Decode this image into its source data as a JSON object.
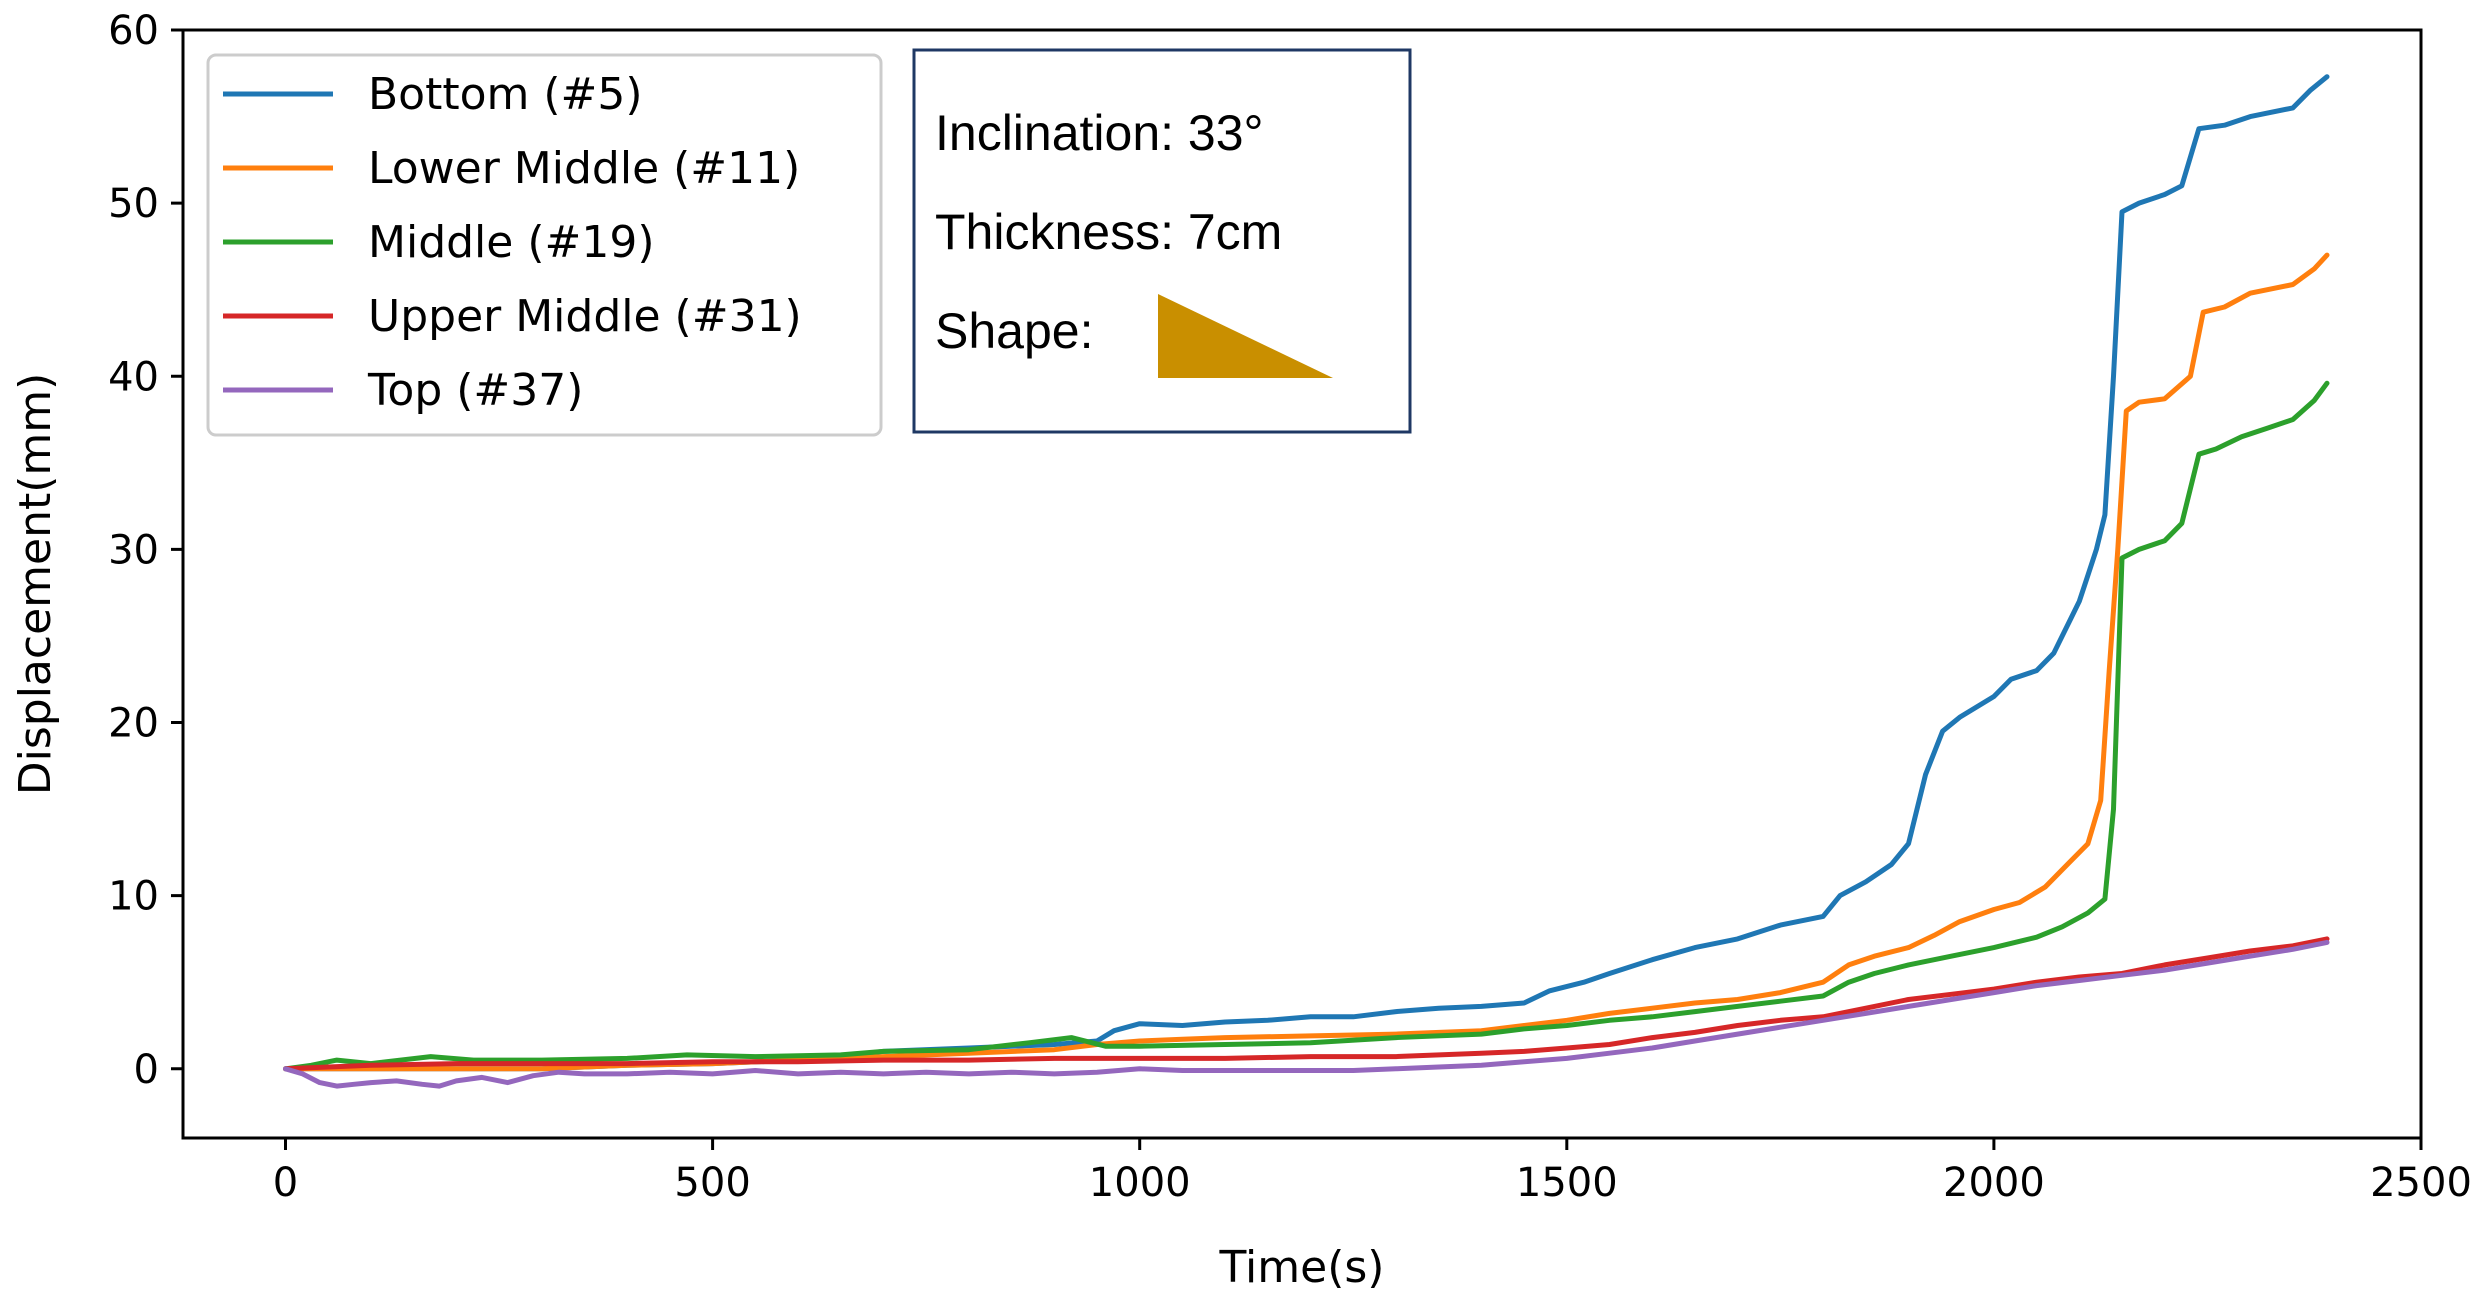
{
  "chart_data": {
    "type": "line",
    "title": "",
    "xlabel": "Time(s)",
    "ylabel": "Displacement(mm)",
    "xlim": [
      -120,
      2500
    ],
    "ylim": [
      -4,
      60
    ],
    "xticks": [
      0,
      500,
      1000,
      1500,
      2000,
      2500
    ],
    "yticks": [
      0,
      10,
      20,
      30,
      40,
      50,
      60
    ],
    "legend_position": "upper-left",
    "series": [
      {
        "name": "Bottom (#5)",
        "color": "#1f77b4",
        "points": [
          [
            0,
            0
          ],
          [
            100,
            0
          ],
          [
            200,
            0
          ],
          [
            300,
            0
          ],
          [
            400,
            0.2
          ],
          [
            500,
            0.3
          ],
          [
            600,
            0.5
          ],
          [
            650,
            0.7
          ],
          [
            700,
            1
          ],
          [
            800,
            1.2
          ],
          [
            900,
            1.4
          ],
          [
            950,
            1.6
          ],
          [
            970,
            2.2
          ],
          [
            1000,
            2.6
          ],
          [
            1050,
            2.5
          ],
          [
            1100,
            2.7
          ],
          [
            1150,
            2.8
          ],
          [
            1200,
            3
          ],
          [
            1250,
            3
          ],
          [
            1300,
            3.3
          ],
          [
            1350,
            3.5
          ],
          [
            1400,
            3.6
          ],
          [
            1450,
            3.8
          ],
          [
            1480,
            4.5
          ],
          [
            1520,
            5
          ],
          [
            1550,
            5.5
          ],
          [
            1600,
            6.3
          ],
          [
            1650,
            7
          ],
          [
            1700,
            7.5
          ],
          [
            1750,
            8.3
          ],
          [
            1800,
            8.8
          ],
          [
            1820,
            10
          ],
          [
            1850,
            10.8
          ],
          [
            1880,
            11.8
          ],
          [
            1900,
            13
          ],
          [
            1920,
            17
          ],
          [
            1940,
            19.5
          ],
          [
            1960,
            20.3
          ],
          [
            2000,
            21.5
          ],
          [
            2020,
            22.5
          ],
          [
            2050,
            23
          ],
          [
            2070,
            24
          ],
          [
            2090,
            26
          ],
          [
            2100,
            27
          ],
          [
            2110,
            28.5
          ],
          [
            2120,
            30
          ],
          [
            2130,
            32
          ],
          [
            2140,
            40
          ],
          [
            2150,
            49.5
          ],
          [
            2170,
            50
          ],
          [
            2200,
            50.5
          ],
          [
            2220,
            51
          ],
          [
            2240,
            54.3
          ],
          [
            2270,
            54.5
          ],
          [
            2300,
            55
          ],
          [
            2350,
            55.5
          ],
          [
            2370,
            56.5
          ],
          [
            2390,
            57.3
          ]
        ]
      },
      {
        "name": "Lower Middle (#11)",
        "color": "#ff7f0e",
        "points": [
          [
            0,
            0
          ],
          [
            100,
            0
          ],
          [
            200,
            0
          ],
          [
            300,
            0
          ],
          [
            400,
            0.2
          ],
          [
            500,
            0.3
          ],
          [
            600,
            0.5
          ],
          [
            700,
            0.7
          ],
          [
            800,
            0.9
          ],
          [
            900,
            1.1
          ],
          [
            950,
            1.4
          ],
          [
            1000,
            1.6
          ],
          [
            1050,
            1.7
          ],
          [
            1100,
            1.8
          ],
          [
            1200,
            1.9
          ],
          [
            1300,
            2
          ],
          [
            1400,
            2.2
          ],
          [
            1450,
            2.5
          ],
          [
            1500,
            2.8
          ],
          [
            1550,
            3.2
          ],
          [
            1600,
            3.5
          ],
          [
            1650,
            3.8
          ],
          [
            1700,
            4
          ],
          [
            1750,
            4.4
          ],
          [
            1800,
            5
          ],
          [
            1830,
            6
          ],
          [
            1860,
            6.5
          ],
          [
            1900,
            7
          ],
          [
            1930,
            7.7
          ],
          [
            1960,
            8.5
          ],
          [
            2000,
            9.2
          ],
          [
            2030,
            9.6
          ],
          [
            2060,
            10.5
          ],
          [
            2090,
            12
          ],
          [
            2110,
            13
          ],
          [
            2125,
            15.5
          ],
          [
            2135,
            23
          ],
          [
            2145,
            30
          ],
          [
            2155,
            38
          ],
          [
            2170,
            38.5
          ],
          [
            2200,
            38.7
          ],
          [
            2230,
            40
          ],
          [
            2245,
            43.7
          ],
          [
            2270,
            44
          ],
          [
            2300,
            44.8
          ],
          [
            2350,
            45.3
          ],
          [
            2375,
            46.2
          ],
          [
            2390,
            47
          ]
        ]
      },
      {
        "name": "Middle (#19)",
        "color": "#2ca02c",
        "points": [
          [
            0,
            0
          ],
          [
            30,
            0.2
          ],
          [
            60,
            0.5
          ],
          [
            100,
            0.3
          ],
          [
            170,
            0.7
          ],
          [
            220,
            0.5
          ],
          [
            300,
            0.5
          ],
          [
            400,
            0.6
          ],
          [
            470,
            0.8
          ],
          [
            550,
            0.7
          ],
          [
            650,
            0.8
          ],
          [
            700,
            1
          ],
          [
            800,
            1.1
          ],
          [
            870,
            1.5
          ],
          [
            920,
            1.8
          ],
          [
            960,
            1.3
          ],
          [
            1000,
            1.3
          ],
          [
            1100,
            1.4
          ],
          [
            1200,
            1.5
          ],
          [
            1300,
            1.8
          ],
          [
            1400,
            2
          ],
          [
            1450,
            2.3
          ],
          [
            1500,
            2.5
          ],
          [
            1550,
            2.8
          ],
          [
            1600,
            3
          ],
          [
            1650,
            3.3
          ],
          [
            1700,
            3.6
          ],
          [
            1750,
            3.9
          ],
          [
            1800,
            4.2
          ],
          [
            1830,
            5
          ],
          [
            1860,
            5.5
          ],
          [
            1900,
            6
          ],
          [
            1950,
            6.5
          ],
          [
            2000,
            7
          ],
          [
            2050,
            7.6
          ],
          [
            2080,
            8.2
          ],
          [
            2110,
            9
          ],
          [
            2130,
            9.8
          ],
          [
            2140,
            15
          ],
          [
            2150,
            29.5
          ],
          [
            2170,
            30
          ],
          [
            2200,
            30.5
          ],
          [
            2220,
            31.5
          ],
          [
            2240,
            35.5
          ],
          [
            2260,
            35.8
          ],
          [
            2290,
            36.5
          ],
          [
            2320,
            37
          ],
          [
            2350,
            37.5
          ],
          [
            2375,
            38.6
          ],
          [
            2390,
            39.6
          ]
        ]
      },
      {
        "name": "Upper Middle (#31)",
        "color": "#d62728",
        "points": [
          [
            0,
            0
          ],
          [
            100,
            0.2
          ],
          [
            200,
            0.3
          ],
          [
            300,
            0.3
          ],
          [
            400,
            0.3
          ],
          [
            500,
            0.4
          ],
          [
            600,
            0.4
          ],
          [
            700,
            0.5
          ],
          [
            800,
            0.5
          ],
          [
            900,
            0.6
          ],
          [
            1000,
            0.6
          ],
          [
            1100,
            0.6
          ],
          [
            1200,
            0.7
          ],
          [
            1300,
            0.7
          ],
          [
            1400,
            0.9
          ],
          [
            1450,
            1
          ],
          [
            1500,
            1.2
          ],
          [
            1550,
            1.4
          ],
          [
            1600,
            1.8
          ],
          [
            1650,
            2.1
          ],
          [
            1700,
            2.5
          ],
          [
            1750,
            2.8
          ],
          [
            1800,
            3
          ],
          [
            1850,
            3.5
          ],
          [
            1900,
            4
          ],
          [
            1950,
            4.3
          ],
          [
            2000,
            4.6
          ],
          [
            2050,
            5
          ],
          [
            2100,
            5.3
          ],
          [
            2150,
            5.5
          ],
          [
            2200,
            6
          ],
          [
            2250,
            6.4
          ],
          [
            2300,
            6.8
          ],
          [
            2350,
            7.1
          ],
          [
            2390,
            7.5
          ]
        ]
      },
      {
        "name": "Top (#37)",
        "color": "#9467bd",
        "points": [
          [
            0,
            0
          ],
          [
            20,
            -0.3
          ],
          [
            40,
            -0.8
          ],
          [
            60,
            -1
          ],
          [
            80,
            -0.9
          ],
          [
            100,
            -0.8
          ],
          [
            130,
            -0.7
          ],
          [
            160,
            -0.9
          ],
          [
            180,
            -1
          ],
          [
            200,
            -0.7
          ],
          [
            230,
            -0.5
          ],
          [
            260,
            -0.8
          ],
          [
            290,
            -0.4
          ],
          [
            320,
            -0.2
          ],
          [
            350,
            -0.3
          ],
          [
            400,
            -0.3
          ],
          [
            450,
            -0.2
          ],
          [
            500,
            -0.3
          ],
          [
            550,
            -0.1
          ],
          [
            600,
            -0.3
          ],
          [
            650,
            -0.2
          ],
          [
            700,
            -0.3
          ],
          [
            750,
            -0.2
          ],
          [
            800,
            -0.3
          ],
          [
            850,
            -0.2
          ],
          [
            900,
            -0.3
          ],
          [
            950,
            -0.2
          ],
          [
            1000,
            0
          ],
          [
            1050,
            -0.1
          ],
          [
            1100,
            -0.1
          ],
          [
            1150,
            -0.1
          ],
          [
            1200,
            -0.1
          ],
          [
            1250,
            -0.1
          ],
          [
            1300,
            0
          ],
          [
            1350,
            0.1
          ],
          [
            1400,
            0.2
          ],
          [
            1450,
            0.4
          ],
          [
            1500,
            0.6
          ],
          [
            1550,
            0.9
          ],
          [
            1600,
            1.2
          ],
          [
            1650,
            1.6
          ],
          [
            1700,
            2
          ],
          [
            1750,
            2.4
          ],
          [
            1800,
            2.8
          ],
          [
            1850,
            3.2
          ],
          [
            1900,
            3.6
          ],
          [
            1950,
            4
          ],
          [
            2000,
            4.4
          ],
          [
            2050,
            4.8
          ],
          [
            2100,
            5.1
          ],
          [
            2150,
            5.4
          ],
          [
            2200,
            5.7
          ],
          [
            2250,
            6.1
          ],
          [
            2300,
            6.5
          ],
          [
            2350,
            6.9
          ],
          [
            2390,
            7.3
          ]
        ]
      }
    ]
  },
  "info_box": {
    "inclination": "Inclination: 33°",
    "thickness": "Thickness: 7cm",
    "shape_label": "Shape:",
    "shape_color": "#c98f00"
  }
}
